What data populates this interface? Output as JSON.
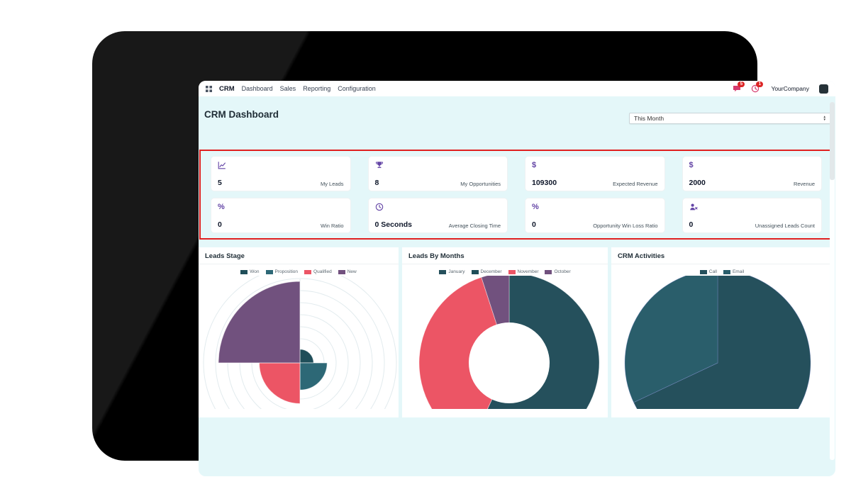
{
  "navbar": {
    "app_name": "CRM",
    "menus": [
      "Dashboard",
      "Sales",
      "Reporting",
      "Configuration"
    ],
    "messages_badge": "5",
    "activities_badge": "1",
    "company": "YourCompany"
  },
  "header": {
    "title": "CRM Dashboard",
    "period": "This Month"
  },
  "kpis": [
    {
      "icon": "line-chart-icon",
      "value": "5",
      "label": "My Leads"
    },
    {
      "icon": "trophy-icon",
      "value": "8",
      "label": "My Opportunities"
    },
    {
      "icon": "dollar-icon",
      "value": "109300",
      "label": "Expected Revenue"
    },
    {
      "icon": "dollar-icon",
      "value": "2000",
      "label": "Revenue"
    },
    {
      "icon": "percent-icon",
      "value": "0",
      "label": "Win Ratio"
    },
    {
      "icon": "clock-icon",
      "value": "0 Seconds",
      "label": "Average Closing Time"
    },
    {
      "icon": "percent-icon",
      "value": "0",
      "label": "Opportunity Win Loss Ratio"
    },
    {
      "icon": "user-x-icon",
      "value": "0",
      "label": "Unassigned Leads Count"
    }
  ],
  "chart_data": [
    {
      "type": "polarArea",
      "title": "Leads Stage",
      "labels": [
        "Won",
        "Proposition",
        "Qualified",
        "New"
      ],
      "values": [
        1,
        2,
        3,
        6
      ],
      "colors": [
        "#1f4e59",
        "#2d6876",
        "#ec5565",
        "#71517e"
      ],
      "legend_position": "top",
      "grid": true
    },
    {
      "type": "doughnut",
      "title": "Leads By Months",
      "labels": [
        "January",
        "December",
        "November",
        "October"
      ],
      "values": [
        57,
        0,
        38,
        5
      ],
      "colors": [
        "#25505c",
        "#1f4e59",
        "#ec5565",
        "#71517e"
      ],
      "legend_position": "top",
      "grid": false
    },
    {
      "type": "pie",
      "title": "CRM Activities",
      "labels": [
        "Call",
        "Email"
      ],
      "values": [
        68,
        32
      ],
      "colors": [
        "#25505c",
        "#2a5e6b"
      ],
      "legend_position": "top",
      "grid": false
    }
  ],
  "colors": {
    "screen_bg": "#e4f7f9",
    "kpi_highlight_border": "#e02020",
    "accent_purple": "#6344a5",
    "badge_red": "#dc2626",
    "nav_icon_pink": "#d63b6e"
  }
}
